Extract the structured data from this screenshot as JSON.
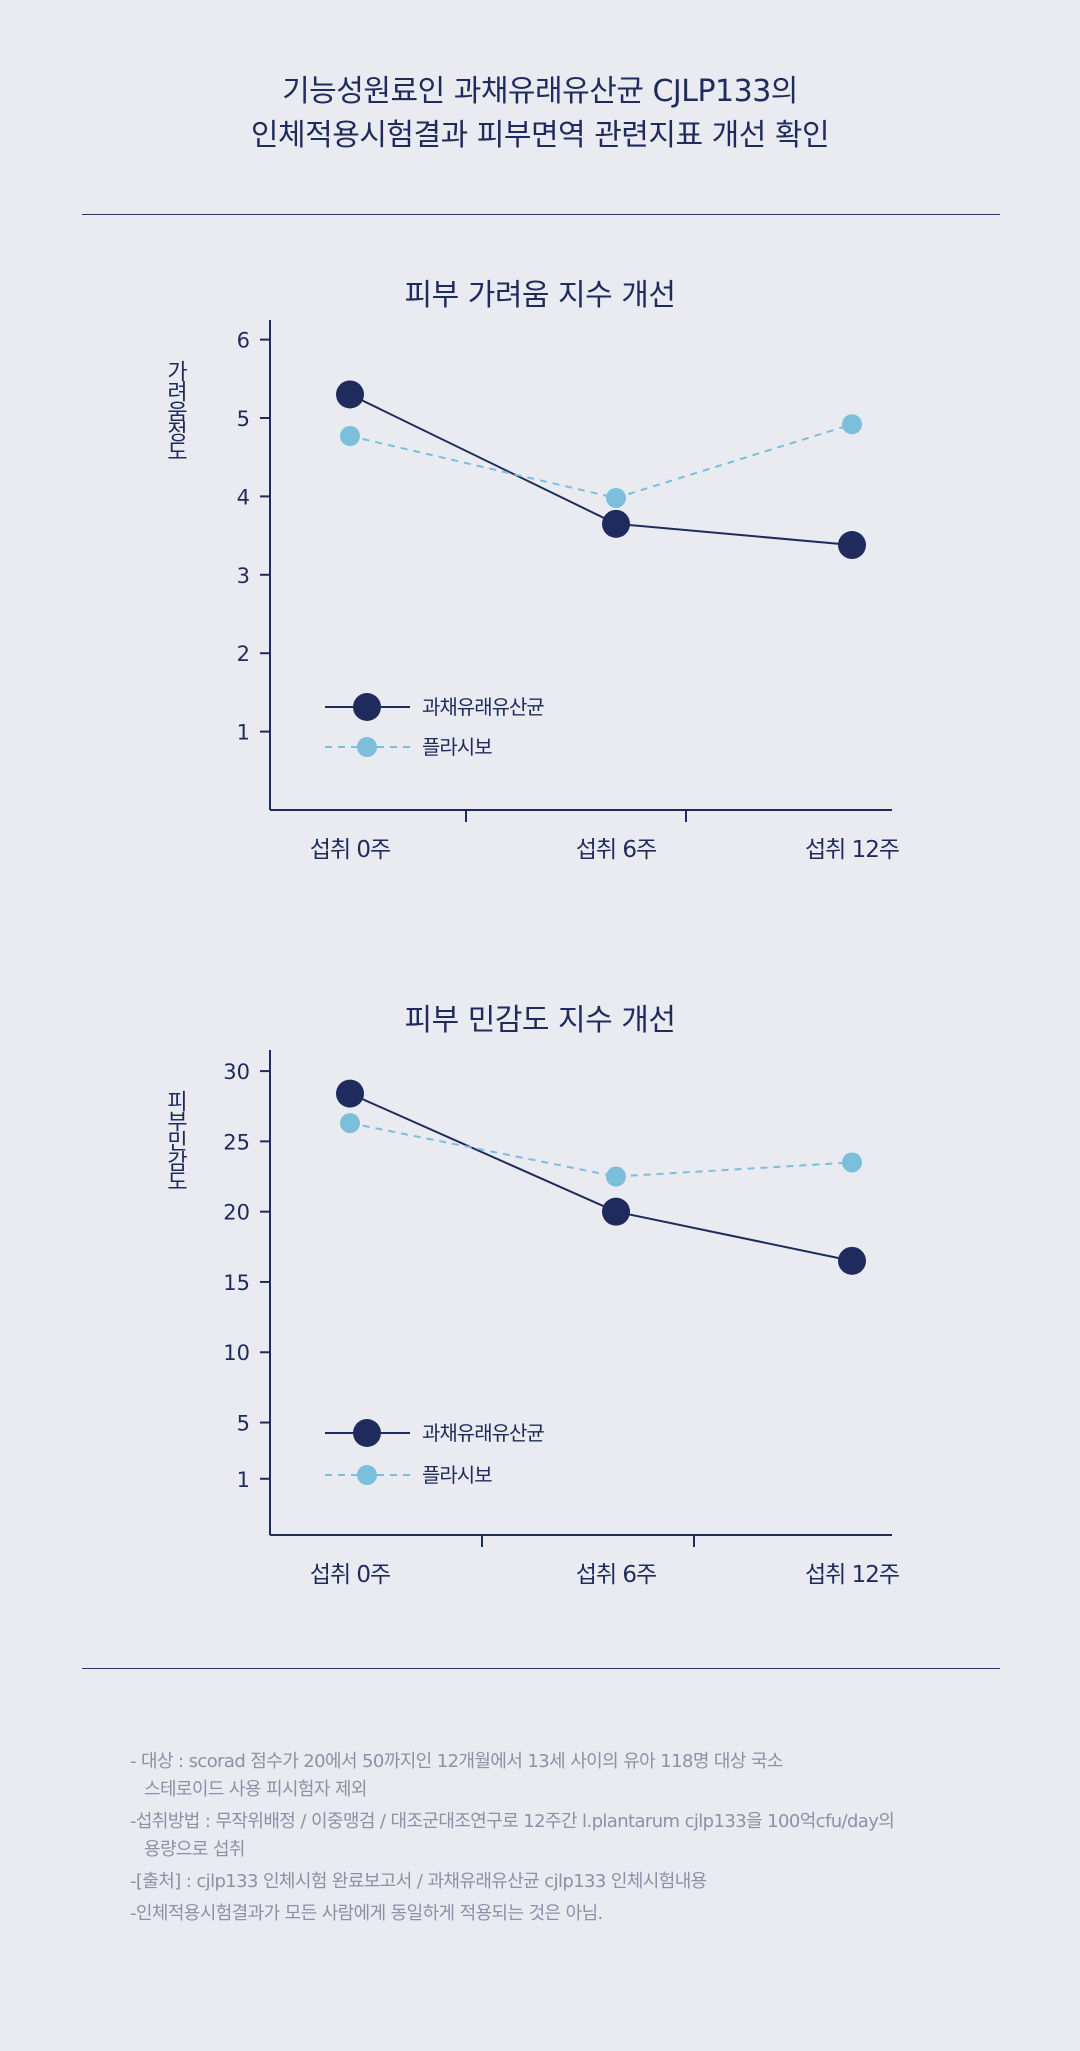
{
  "title": {
    "line1": "기능성원료인 과채유래유산균 CJLP133의",
    "line2": "인체적용시험결과 피부면역 관련지표 개선 확인"
  },
  "colors": {
    "series1": "#1f2b5c",
    "series2": "#7bbfdc",
    "axis": "#1f2b5c"
  },
  "chart_data": [
    {
      "type": "line",
      "title": "피부 가려움 지수 개선",
      "ylabel": "가려움정도",
      "categories": [
        "섭취 0주",
        "섭취 6주",
        "섭취 12주"
      ],
      "yticks": [
        1,
        2,
        3,
        4,
        5,
        6
      ],
      "ylim": [
        0,
        6.25
      ],
      "grid": false,
      "legend": "bottom-left",
      "series": [
        {
          "name": "과채유래유산균",
          "values": [
            5.3,
            3.65,
            3.38
          ],
          "style": "solid"
        },
        {
          "name": "플라시보",
          "values": [
            4.77,
            3.98,
            4.92
          ],
          "style": "dashed"
        }
      ]
    },
    {
      "type": "line",
      "title": "피부 민감도 지수 개선",
      "ylabel": "피부민감도",
      "categories": [
        "섭취 0주",
        "섭취 6주",
        "섭취 12주"
      ],
      "yticks": [
        1,
        5,
        10,
        15,
        20,
        25,
        30
      ],
      "ylim": [
        -3,
        31.5
      ],
      "grid": false,
      "legend": "bottom-left",
      "series": [
        {
          "name": "과채유래유산균",
          "values": [
            28.4,
            20.0,
            16.5
          ],
          "style": "solid"
        },
        {
          "name": "플라시보",
          "values": [
            26.3,
            22.5,
            23.5
          ],
          "style": "dashed"
        }
      ]
    }
  ],
  "notes": {
    "line1": "- 대상 : scorad 점수가 20에서 50까지인 12개월에서 13세 사이의 유아 118명 대상 국소",
    "line1b": "스테로이드 사용 피시험자 제외",
    "line2": "-섭취방법 : 무작위배정 / 이중맹검 / 대조군대조연구로 12주간 l.plantarum cjlp133을 100억cfu/day의",
    "line2b": "용량으로 섭취",
    "line3": "-[출처] : cjlp133 인체시험 완료보고서 / 과채유래유산균 cjlp133 인체시험내용",
    "line4": "-인체적용시험결과가 모든 사람에게 동일하게 적용되는 것은 아님."
  }
}
